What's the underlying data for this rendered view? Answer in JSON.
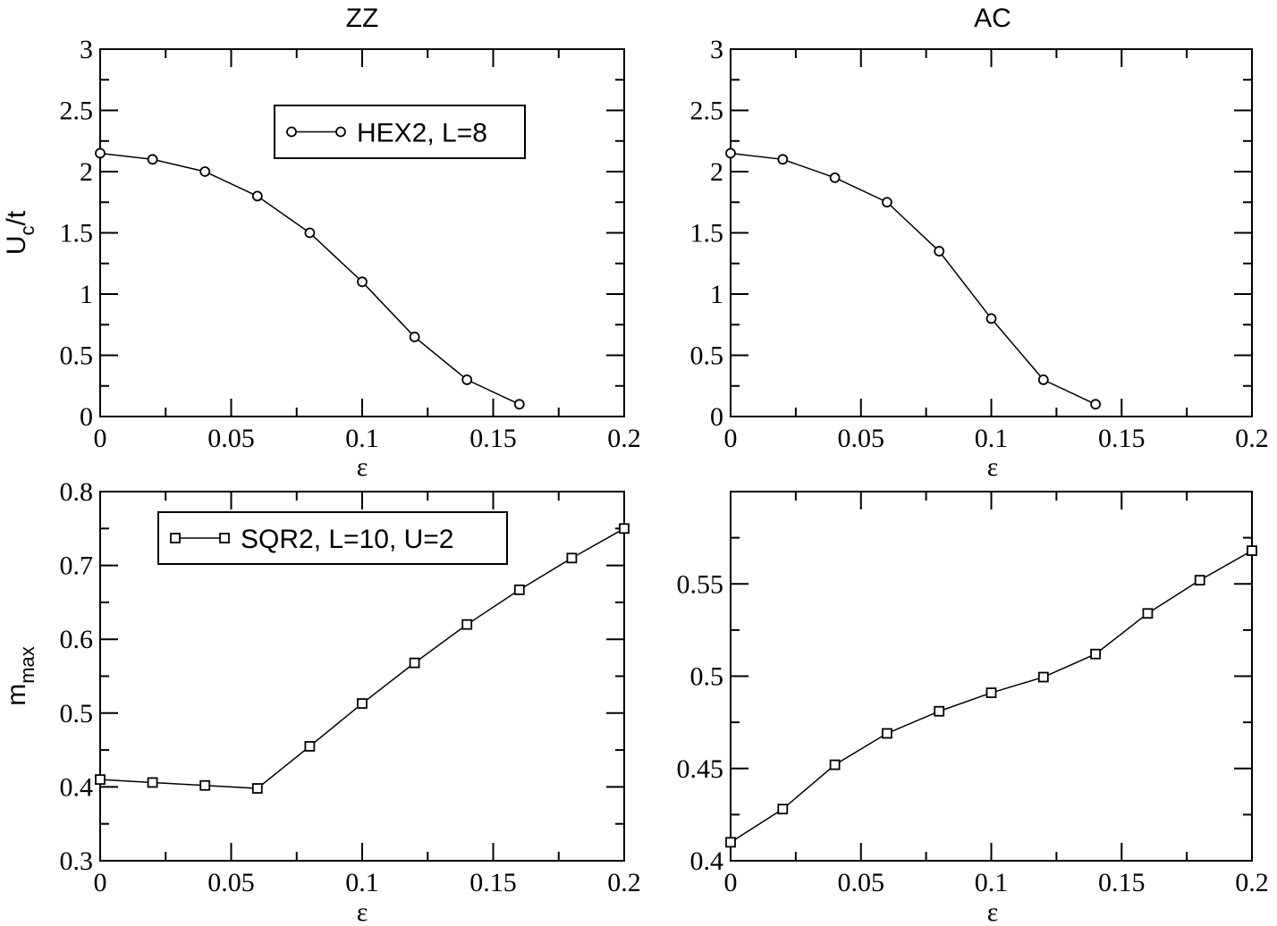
{
  "chart_data": [
    {
      "type": "line",
      "title": "ZZ",
      "xlabel": "ε",
      "ylabel": "U_c/t",
      "ylabel_main": "U",
      "ylabel_sub": "c",
      "ylabel_tail": "/t",
      "xlim": [
        0,
        0.2
      ],
      "ylim": [
        0,
        3
      ],
      "xticks": [
        0,
        0.05,
        0.1,
        0.15,
        0.2
      ],
      "xtick_labels": [
        "0",
        "0.05",
        "0.1",
        "0.15",
        "0.2"
      ],
      "yticks": [
        0,
        0.5,
        1,
        1.5,
        2,
        2.5,
        3
      ],
      "ytick_labels": [
        "0",
        "0.5",
        "1",
        "1.5",
        "2",
        "2.5",
        "3"
      ],
      "xminor": 0.025,
      "yminor": 0.25,
      "marker": "circle",
      "legend": {
        "label": "HEX2, L=8",
        "placement": "top-center"
      },
      "series": [
        {
          "name": "HEX2, L=8",
          "x": [
            0,
            0.02,
            0.04,
            0.06,
            0.08,
            0.1,
            0.12,
            0.14,
            0.16
          ],
          "y": [
            2.15,
            2.1,
            2.0,
            1.8,
            1.5,
            1.1,
            0.65,
            0.3,
            0.1
          ]
        }
      ]
    },
    {
      "type": "line",
      "title": "AC",
      "xlabel": "ε",
      "ylabel": "",
      "xlim": [
        0,
        0.2
      ],
      "ylim": [
        0,
        3
      ],
      "xticks": [
        0,
        0.05,
        0.1,
        0.15,
        0.2
      ],
      "xtick_labels": [
        "0",
        "0.05",
        "0.1",
        "0.15",
        "0.2"
      ],
      "yticks": [
        0,
        0.5,
        1,
        1.5,
        2,
        2.5,
        3
      ],
      "ytick_labels": [
        "0",
        "0.5",
        "1",
        "1.5",
        "2",
        "2.5",
        "3"
      ],
      "xminor": 0.025,
      "yminor": 0.25,
      "marker": "circle",
      "series": [
        {
          "name": "HEX2, L=8",
          "x": [
            0,
            0.02,
            0.04,
            0.06,
            0.08,
            0.1,
            0.12,
            0.14
          ],
          "y": [
            2.15,
            2.1,
            1.95,
            1.75,
            1.35,
            0.8,
            0.3,
            0.1
          ]
        }
      ]
    },
    {
      "type": "line",
      "title": "",
      "xlabel": "ε",
      "ylabel": "m_max",
      "ylabel_main": "m",
      "ylabel_sub": "max",
      "ylabel_tail": "",
      "xlim": [
        0,
        0.2
      ],
      "ylim": [
        0.3,
        0.8
      ],
      "xticks": [
        0,
        0.05,
        0.1,
        0.15,
        0.2
      ],
      "xtick_labels": [
        "0",
        "0.05",
        "0.1",
        "0.15",
        "0.2"
      ],
      "yticks": [
        0.3,
        0.4,
        0.5,
        0.6,
        0.7,
        0.8
      ],
      "ytick_labels": [
        "0.3",
        "0.4",
        "0.5",
        "0.6",
        "0.7",
        "0.8"
      ],
      "xminor": 0.025,
      "yminor": 0.05,
      "marker": "square",
      "legend": {
        "label": "SQR2, L=10, U=2",
        "placement": "top-left"
      },
      "series": [
        {
          "name": "SQR2, L=10, U=2",
          "x": [
            0,
            0.02,
            0.04,
            0.06,
            0.08,
            0.1,
            0.12,
            0.14,
            0.16,
            0.18,
            0.2
          ],
          "y": [
            0.41,
            0.406,
            0.402,
            0.398,
            0.455,
            0.513,
            0.568,
            0.62,
            0.667,
            0.71,
            0.75
          ]
        }
      ]
    },
    {
      "type": "line",
      "title": "",
      "xlabel": "ε",
      "ylabel": "",
      "xlim": [
        0,
        0.2
      ],
      "ylim": [
        0.4,
        0.6
      ],
      "xticks": [
        0,
        0.05,
        0.1,
        0.15,
        0.2
      ],
      "xtick_labels": [
        "0",
        "0.05",
        "0.1",
        "0.15",
        "0.2"
      ],
      "yticks": [
        0.4,
        0.45,
        0.5,
        0.55
      ],
      "ytick_labels": [
        "0.4",
        "0.45",
        "0.5",
        "0.55"
      ],
      "xminor": 0.025,
      "yminor": 0.025,
      "marker": "square",
      "series": [
        {
          "name": "SQR2, L=10, U=2",
          "x": [
            0,
            0.02,
            0.04,
            0.06,
            0.08,
            0.1,
            0.12,
            0.14,
            0.16,
            0.18,
            0.2
          ],
          "y": [
            0.41,
            0.428,
            0.452,
            0.469,
            0.481,
            0.491,
            0.4995,
            0.512,
            0.534,
            0.552,
            0.568
          ]
        }
      ]
    }
  ]
}
